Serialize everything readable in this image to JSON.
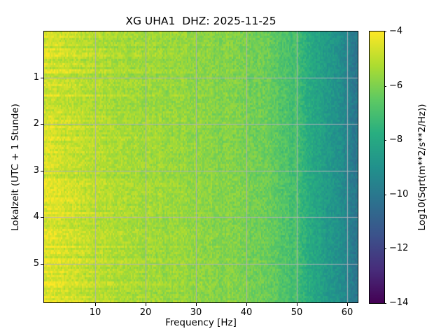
{
  "window": {
    "background": "#ffffff",
    "text_color": "#000000"
  },
  "chart_data": {
    "type": "heatmap",
    "title": "XG UHA1  DHZ: 2025-11-25",
    "xlabel": "Frequency [Hz]",
    "ylabel": "Lokalzeit (UTC + 1 Stunde)",
    "colorbar_label": "Log10(Sqrt(m**2/s**2/Hz))",
    "colormap": "viridis",
    "grid": true,
    "grid_color": "#b0b0b8",
    "xlim": [
      0,
      62.5
    ],
    "ylim": [
      0,
      5.83
    ],
    "y_inverted": true,
    "xticks": [
      10,
      20,
      30,
      40,
      50,
      60
    ],
    "xtick_labels": [
      "10",
      "20",
      "30",
      "40",
      "50",
      "60"
    ],
    "yticks": [
      1,
      2,
      3,
      4,
      5
    ],
    "ytick_labels": [
      "1",
      "2",
      "3",
      "4",
      "5"
    ],
    "colorbar_range": [
      -14,
      -4
    ],
    "colorbar_ticks": [
      -4,
      -6,
      -8,
      -10,
      -12,
      -14
    ],
    "colorbar_tick_labels": [
      "−4",
      "−6",
      "−8",
      "−10",
      "−12",
      "−14"
    ],
    "viridis_stops": [
      "#440154",
      "#472d7b",
      "#3b528b",
      "#2c728e",
      "#21918c",
      "#28ae80",
      "#5ec962",
      "#addc30",
      "#fde725"
    ],
    "freq_bin_centers": [
      1.25,
      3.75,
      6.25,
      8.75,
      11.25,
      13.75,
      16.25,
      18.75,
      21.25,
      23.75,
      26.25,
      28.75,
      31.25,
      33.75,
      36.25,
      38.75,
      41.25,
      43.75,
      46.25,
      48.75,
      51.25,
      53.75,
      56.25,
      58.75,
      61.25
    ],
    "time_bin_centers": [
      0.24,
      0.73,
      1.21,
      1.69,
      2.18,
      2.66,
      3.14,
      3.63,
      4.11,
      4.59,
      5.08,
      5.56
    ],
    "values": [
      [
        -4.75,
        -4.9,
        -5.0,
        -5.13,
        -5.22,
        -5.31,
        -5.36,
        -5.41,
        -5.5,
        -5.55,
        -5.55,
        -5.65,
        -5.75,
        -5.85,
        -5.9,
        -6.0,
        -6.1,
        -6.3,
        -6.6,
        -6.95,
        -7.6,
        -8.1,
        -8.6,
        -9.1,
        -9.95
      ],
      [
        -4.7,
        -4.85,
        -4.95,
        -5.1,
        -5.2,
        -5.3,
        -5.35,
        -5.4,
        -5.5,
        -5.55,
        -5.55,
        -5.65,
        -5.75,
        -5.85,
        -5.9,
        -6.0,
        -6.1,
        -6.3,
        -6.6,
        -6.95,
        -7.6,
        -8.1,
        -8.6,
        -9.1,
        -9.95
      ],
      [
        -4.65,
        -4.81,
        -4.91,
        -5.07,
        -5.18,
        -5.28,
        -5.34,
        -5.39,
        -5.5,
        -5.55,
        -5.55,
        -5.65,
        -5.75,
        -5.85,
        -5.9,
        -6.0,
        -6.1,
        -6.3,
        -6.6,
        -6.95,
        -7.6,
        -8.1,
        -8.6,
        -9.1,
        -9.95
      ],
      [
        -4.7,
        -4.85,
        -4.95,
        -5.1,
        -5.2,
        -5.3,
        -5.35,
        -5.4,
        -5.5,
        -5.55,
        -5.55,
        -5.65,
        -5.75,
        -5.85,
        -5.9,
        -6.0,
        -6.1,
        -6.3,
        -6.6,
        -6.95,
        -7.6,
        -8.1,
        -8.6,
        -9.1,
        -9.95
      ],
      [
        -4.6,
        -4.76,
        -4.87,
        -5.03,
        -5.14,
        -5.25,
        -5.31,
        -5.37,
        -5.48,
        -5.54,
        -5.55,
        -5.65,
        -5.75,
        -5.85,
        -5.9,
        -6.0,
        -6.1,
        -6.3,
        -6.6,
        -6.95,
        -7.6,
        -8.1,
        -8.6,
        -9.1,
        -9.95
      ],
      [
        -4.65,
        -4.81,
        -4.91,
        -5.07,
        -5.18,
        -5.28,
        -5.34,
        -5.39,
        -5.5,
        -5.55,
        -5.55,
        -5.65,
        -5.75,
        -5.85,
        -5.9,
        -6.0,
        -6.1,
        -6.3,
        -6.6,
        -6.95,
        -7.6,
        -8.1,
        -8.6,
        -9.1,
        -9.95
      ],
      [
        -4.6,
        -4.76,
        -4.87,
        -5.03,
        -5.14,
        -5.25,
        -5.31,
        -5.37,
        -5.48,
        -5.54,
        -5.55,
        -5.65,
        -5.75,
        -5.85,
        -5.9,
        -6.0,
        -6.1,
        -6.3,
        -6.6,
        -6.95,
        -7.6,
        -8.1,
        -8.6,
        -9.1,
        -9.95
      ],
      [
        -4.55,
        -4.72,
        -4.82,
        -4.99,
        -5.11,
        -5.21,
        -5.28,
        -5.34,
        -5.46,
        -5.52,
        -5.54,
        -5.64,
        -5.75,
        -5.85,
        -5.9,
        -6.0,
        -6.1,
        -6.3,
        -6.6,
        -6.95,
        -7.6,
        -8.1,
        -8.6,
        -9.1,
        -9.95
      ],
      [
        -4.5,
        -4.67,
        -4.78,
        -4.95,
        -5.07,
        -5.18,
        -5.25,
        -5.32,
        -5.45,
        -5.51,
        -5.52,
        -5.63,
        -5.74,
        -5.84,
        -5.9,
        -6.0,
        -6.1,
        -6.3,
        -6.6,
        -6.95,
        -7.6,
        -8.1,
        -8.6,
        -9.1,
        -9.95
      ],
      [
        -4.5,
        -4.67,
        -4.78,
        -4.95,
        -5.07,
        -5.18,
        -5.25,
        -5.32,
        -5.45,
        -5.51,
        -5.52,
        -5.63,
        -5.74,
        -5.84,
        -5.9,
        -6.0,
        -6.1,
        -6.3,
        -6.6,
        -6.95,
        -7.6,
        -8.1,
        -8.6,
        -9.1,
        -9.95
      ],
      [
        -4.45,
        -4.63,
        -4.73,
        -4.91,
        -5.04,
        -5.14,
        -5.22,
        -5.29,
        -5.43,
        -5.5,
        -5.51,
        -5.62,
        -5.73,
        -5.83,
        -5.89,
        -5.99,
        -6.1,
        -6.3,
        -6.6,
        -6.95,
        -7.6,
        -8.1,
        -8.6,
        -9.1,
        -9.95
      ],
      [
        -4.45,
        -4.63,
        -4.73,
        -4.91,
        -5.04,
        -5.14,
        -5.22,
        -5.29,
        -5.43,
        -5.5,
        -5.51,
        -5.62,
        -5.73,
        -5.83,
        -5.89,
        -5.99,
        -6.1,
        -6.3,
        -6.6,
        -6.95,
        -7.6,
        -8.1,
        -8.6,
        -9.1,
        -9.95
      ]
    ],
    "spectral_lines": [
      {
        "freq": 50,
        "boost": 0.5,
        "width_hz": 0.5
      }
    ]
  }
}
